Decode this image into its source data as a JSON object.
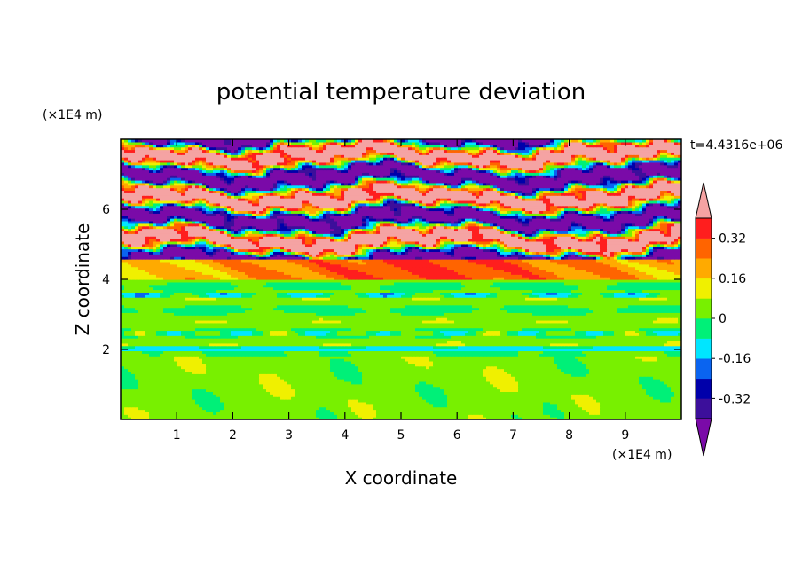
{
  "chart_data": {
    "type": "heatmap",
    "title": "potential temperature deviation",
    "xlabel": "X coordinate",
    "ylabel": "Z coordinate",
    "x_unit": "(×1E4 m)",
    "y_unit": "(×1E4 m)",
    "time_label": "t=4.4316e+06",
    "xlim": [
      0,
      10
    ],
    "ylim": [
      0,
      8
    ],
    "x_ticks": [
      "1",
      "2",
      "3",
      "4",
      "5",
      "6",
      "7",
      "8",
      "9"
    ],
    "y_ticks": [
      "2",
      "4",
      "6"
    ],
    "colorbar": {
      "levels": [
        -0.4,
        -0.32,
        -0.24,
        -0.16,
        -0.08,
        0,
        0.08,
        0.16,
        0.24,
        0.32,
        0.4
      ],
      "labels": [
        "0.32",
        "0.16",
        "0",
        "-0.16",
        "-0.32"
      ],
      "colors_low_to_high": [
        "#3c0f9b",
        "#0000aa",
        "#0a64f0",
        "#00e6ff",
        "#00f078",
        "#78f000",
        "#f0f000",
        "#ffaa00",
        "#ff6400",
        "#ff1e1e"
      ],
      "under_color": "#7a0aa8",
      "over_color": "#f5a3a3",
      "extend": "both"
    },
    "regions": [
      {
        "z_range": [
          0,
          2
        ],
        "description": "mostly -0.08 to 0.08 with rolling cells",
        "dominant_value": 0.04
      },
      {
        "z_range": [
          2,
          4
        ],
        "description": "horizontal layers near zero",
        "dominant_value": 0.0
      },
      {
        "z_range": [
          4,
          4.6
        ],
        "description": "warm band",
        "dominant_value": 0.3
      },
      {
        "z_range": [
          4.6,
          8
        ],
        "description": "alternating strong positive and negative streaks",
        "dominant_value": 0.45
      }
    ]
  }
}
